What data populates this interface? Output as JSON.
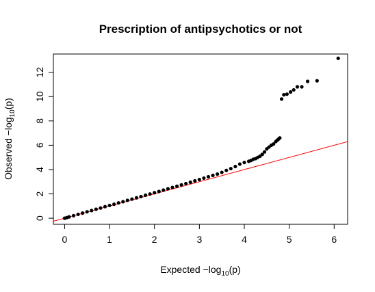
{
  "chart_data": {
    "type": "scatter",
    "title": "Prescription of antipsychotics or not",
    "xlabel": {
      "prefix": "Expected  −log",
      "sub": "10",
      "suffix": "(p)"
    },
    "ylabel": {
      "prefix": "Observed  −log",
      "sub": "10",
      "suffix": "(p)"
    },
    "xlim": [
      -0.25,
      6.3
    ],
    "ylim": [
      -0.5,
      13.5
    ],
    "xticks": [
      0,
      1,
      2,
      3,
      4,
      5,
      6
    ],
    "yticks": [
      0,
      2,
      4,
      6,
      8,
      10,
      12
    ],
    "grid": false,
    "reference_line": {
      "slope": 1,
      "intercept": 0,
      "color": "#ff0000"
    },
    "point_color": "#000000",
    "points": [
      [
        0.0,
        0.0
      ],
      [
        0.05,
        0.05
      ],
      [
        0.1,
        0.11
      ],
      [
        0.2,
        0.21
      ],
      [
        0.3,
        0.32
      ],
      [
        0.4,
        0.42
      ],
      [
        0.5,
        0.53
      ],
      [
        0.6,
        0.63
      ],
      [
        0.7,
        0.74
      ],
      [
        0.8,
        0.84
      ],
      [
        0.9,
        0.95
      ],
      [
        1.0,
        1.05
      ],
      [
        1.1,
        1.15
      ],
      [
        1.2,
        1.26
      ],
      [
        1.3,
        1.36
      ],
      [
        1.4,
        1.47
      ],
      [
        1.5,
        1.57
      ],
      [
        1.6,
        1.68
      ],
      [
        1.7,
        1.78
      ],
      [
        1.8,
        1.89
      ],
      [
        1.9,
        1.99
      ],
      [
        2.0,
        2.1
      ],
      [
        2.1,
        2.2
      ],
      [
        2.2,
        2.31
      ],
      [
        2.3,
        2.42
      ],
      [
        2.4,
        2.53
      ],
      [
        2.5,
        2.63
      ],
      [
        2.6,
        2.74
      ],
      [
        2.7,
        2.85
      ],
      [
        2.8,
        2.96
      ],
      [
        2.9,
        3.07
      ],
      [
        3.0,
        3.18
      ],
      [
        3.1,
        3.3
      ],
      [
        3.2,
        3.41
      ],
      [
        3.3,
        3.52
      ],
      [
        3.4,
        3.63
      ],
      [
        3.5,
        3.77
      ],
      [
        3.6,
        3.93
      ],
      [
        3.7,
        4.08
      ],
      [
        3.8,
        4.25
      ],
      [
        3.9,
        4.45
      ],
      [
        4.0,
        4.58
      ],
      [
        4.1,
        4.68
      ],
      [
        4.15,
        4.75
      ],
      [
        4.2,
        4.85
      ],
      [
        4.25,
        4.9
      ],
      [
        4.3,
        5.0
      ],
      [
        4.35,
        5.1
      ],
      [
        4.4,
        5.25
      ],
      [
        4.45,
        5.45
      ],
      [
        4.5,
        5.7
      ],
      [
        4.55,
        5.85
      ],
      [
        4.6,
        6.0
      ],
      [
        4.65,
        6.1
      ],
      [
        4.7,
        6.3
      ],
      [
        4.73,
        6.4
      ],
      [
        4.76,
        6.5
      ],
      [
        4.79,
        6.6
      ],
      [
        4.83,
        9.8
      ],
      [
        4.88,
        10.15
      ],
      [
        4.95,
        10.2
      ],
      [
        5.03,
        10.38
      ],
      [
        5.1,
        10.55
      ],
      [
        5.18,
        10.8
      ],
      [
        5.28,
        10.8
      ],
      [
        5.41,
        11.25
      ],
      [
        5.62,
        11.3
      ],
      [
        6.09,
        13.15
      ]
    ]
  }
}
